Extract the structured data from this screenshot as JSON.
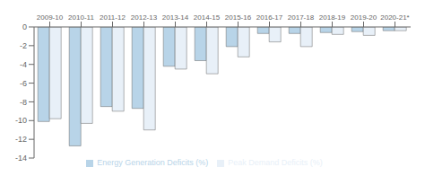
{
  "chart_data": {
    "type": "bar",
    "categories": [
      "2009-10",
      "2010-11",
      "2011-12",
      "2012-13",
      "2013-14",
      "2014-15",
      "2015-16",
      "2016-17",
      "2017-18",
      "2018-19",
      "2019-20",
      "2020-21*"
    ],
    "series": [
      {
        "name": "Energy Generation Deficits (%)",
        "color": "#b8d4e8",
        "values": [
          -10.1,
          -12.7,
          -8.5,
          -8.7,
          -4.2,
          -3.6,
          -2.1,
          -0.7,
          -0.7,
          -0.6,
          -0.5,
          -0.4
        ]
      },
      {
        "name": "Peak Demand Deficits (%)",
        "color": "#e8f0f8",
        "values": [
          -9.8,
          -10.3,
          -9.0,
          -11.0,
          -4.5,
          -5.0,
          -3.2,
          -1.6,
          -2.1,
          -0.8,
          -0.9,
          -0.4
        ]
      }
    ],
    "ylim": [
      -14,
      0
    ],
    "yticks": [
      0,
      -2,
      -4,
      -6,
      -8,
      -10,
      -12,
      -14
    ],
    "grid": false,
    "legend": "bottom"
  }
}
